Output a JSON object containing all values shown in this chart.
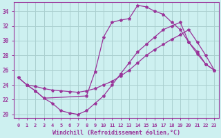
{
  "xlabel": "Windchill (Refroidissement éolien,°C)",
  "xlim": [
    -0.5,
    23.5
  ],
  "ylim": [
    19.5,
    35.2
  ],
  "yticks": [
    20,
    22,
    24,
    26,
    28,
    30,
    32,
    34
  ],
  "xticks": [
    0,
    1,
    2,
    3,
    4,
    5,
    6,
    7,
    8,
    9,
    10,
    11,
    12,
    13,
    14,
    15,
    16,
    17,
    18,
    19,
    20,
    21,
    22,
    23
  ],
  "background_color": "#cdf0f0",
  "grid_color": "#aacfcf",
  "line_color": "#993399",
  "lines": [
    {
      "x": [
        0,
        1,
        2,
        3,
        8,
        9,
        10,
        11,
        12,
        13,
        14,
        15,
        16,
        17,
        18,
        19,
        20,
        21,
        22,
        23
      ],
      "y": [
        25.0,
        24.0,
        23.2,
        22.2,
        22.5,
        25.8,
        30.5,
        32.5,
        32.8,
        33.0,
        34.8,
        34.6,
        34.0,
        33.6,
        32.5,
        31.5,
        29.8,
        28.5,
        26.8,
        26.0
      ]
    },
    {
      "x": [
        1,
        2,
        3,
        4,
        5,
        6,
        7,
        8,
        9,
        10,
        11,
        12,
        13,
        14,
        15,
        16,
        17,
        18,
        19,
        20,
        21,
        22,
        23
      ],
      "y": [
        24.0,
        23.8,
        23.5,
        23.3,
        23.2,
        23.1,
        23.0,
        23.2,
        23.5,
        24.0,
        24.5,
        25.2,
        26.0,
        27.0,
        28.0,
        28.8,
        29.5,
        30.2,
        30.8,
        31.5,
        29.8,
        28.0,
        26.0
      ]
    },
    {
      "x": [
        0,
        1,
        2,
        3,
        4,
        5,
        6,
        7,
        8,
        9,
        10,
        11,
        12,
        13,
        14,
        15,
        16,
        17,
        18,
        19,
        20,
        21,
        22,
        23
      ],
      "y": [
        25.0,
        24.0,
        23.2,
        22.2,
        21.5,
        20.5,
        20.2,
        20.0,
        20.5,
        21.5,
        22.5,
        24.0,
        25.5,
        27.0,
        28.5,
        29.5,
        30.5,
        31.5,
        32.0,
        32.5,
        29.8,
        28.2,
        26.8,
        26.0
      ]
    }
  ]
}
